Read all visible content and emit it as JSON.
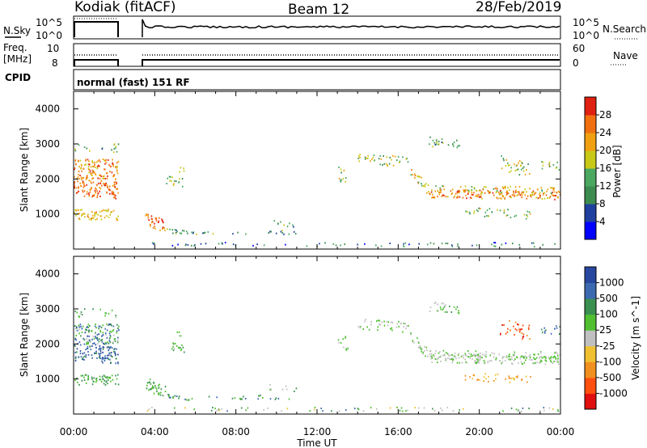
{
  "header": {
    "radar": "Kodiak (fitACF)",
    "beam": "Beam 12",
    "date": "28/Feb/2019"
  },
  "panels_top": {
    "nsky_label": "N.Sky",
    "nsearch_label": "N.Search",
    "freq_label_line1": "Freq.",
    "freq_label_line2": "[MHz]",
    "nave_label": "Nave",
    "cpid_label": "CPID",
    "cpid_value": "normal (fast) 151 RF",
    "nsky_ticks": [
      "10^5",
      "10^0"
    ],
    "nsearch_ticks": [
      "10^5",
      "10^0"
    ],
    "freq_ticks": [
      "10",
      "8"
    ],
    "nave_ticks": [
      "60",
      "0"
    ]
  },
  "colors": {
    "power_scale": [
      "#0000ff",
      "#2040a0",
      "#3c8c50",
      "#4aa860",
      "#c8c818",
      "#f0a010",
      "#f07010",
      "#e02010"
    ],
    "velocity_scale": [
      "#e01010",
      "#ff5010",
      "#f09020",
      "#f0c030",
      "#c0c0c0",
      "#50c030",
      "#3a9050",
      "#3c6ab0",
      "#2848a0"
    ]
  },
  "chart_data": [
    {
      "type": "heatmap",
      "title": "Power",
      "xlabel": "",
      "ylabel": "Slant Range [km]",
      "x_ticks": [
        "00:00",
        "04:00",
        "08:00",
        "12:00",
        "16:00",
        "20:00",
        "00:00"
      ],
      "y_ticks": [
        "1000",
        "2000",
        "3000",
        "4000"
      ],
      "ylim": [
        0,
        4500
      ],
      "colorbar": {
        "label": "Power [dB]",
        "ticks": [
          "4",
          "8",
          "12",
          "16",
          "20",
          "24",
          "28"
        ],
        "range": [
          0,
          32
        ]
      },
      "features": [
        {
          "t_start_h": 0.0,
          "t_end_h": 2.2,
          "range_km": [
            1000,
            2600
          ],
          "power_db": 24
        },
        {
          "t_start_h": 3.5,
          "t_end_h": 6.0,
          "range_km": [
            400,
            1000
          ],
          "power_db": 26
        },
        {
          "t_start_h": 17.0,
          "t_end_h": 24.0,
          "range_km": [
            1500,
            1700
          ],
          "power_db": 22
        }
      ]
    },
    {
      "type": "heatmap",
      "title": "Velocity",
      "xlabel": "Time UT",
      "ylabel": "Slant Range [km]",
      "x_ticks": [
        "00:00",
        "04:00",
        "08:00",
        "12:00",
        "16:00",
        "20:00",
        "00:00"
      ],
      "y_ticks": [
        "1000",
        "2000",
        "3000",
        "4000"
      ],
      "ylim": [
        0,
        4500
      ],
      "colorbar": {
        "label": "Velocity [m s^-1]",
        "ticks": [
          "1000",
          "500",
          "100",
          "25",
          "-25",
          "-100",
          "-500",
          "-1000"
        ]
      }
    }
  ]
}
